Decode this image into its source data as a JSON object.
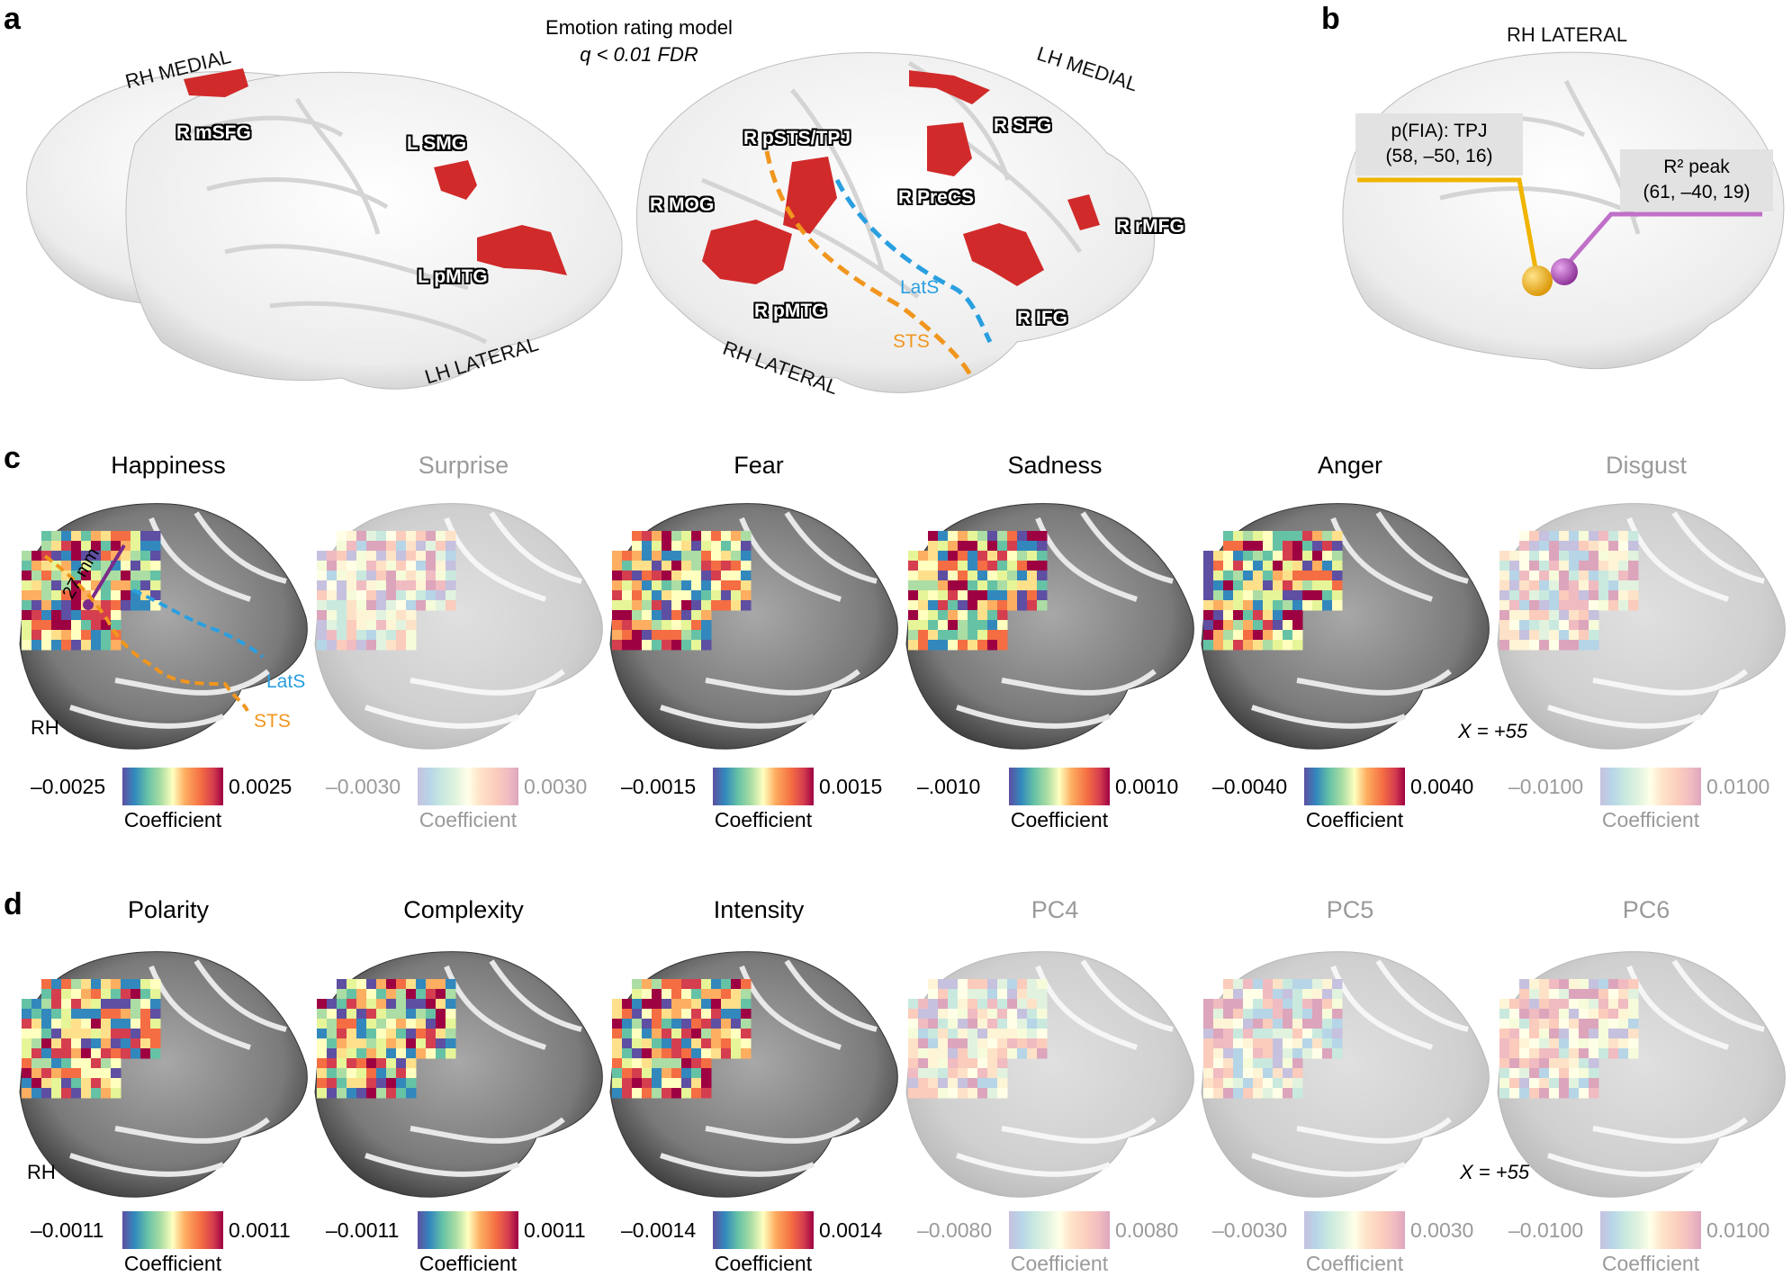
{
  "panels": {
    "a": {
      "letter": "a",
      "title_line1": "Emotion rating model",
      "title_line2": "q < 0.01 FDR",
      "views": [
        "RH MEDIAL",
        "LH LATERAL",
        "LH MEDIAL",
        "RH LATERAL"
      ],
      "regions": [
        "R mSFG",
        "L SMG",
        "L pMTG",
        "R pSTS/TPJ",
        "R SFG",
        "R MOG",
        "R PreCS",
        "R rMFG",
        "LatS",
        "R IFG",
        "R pMTG",
        "STS"
      ]
    },
    "b": {
      "letter": "b",
      "view": "RH LATERAL",
      "callout1_line1": "p(FIA): TPJ",
      "callout1_line2": "(58, –50, 16)",
      "callout2_line1": "R² peak",
      "callout2_line2": "(61, –40, 19)"
    },
    "c": {
      "letter": "c",
      "maps": [
        {
          "title": "Happiness",
          "min": "–0.0025",
          "max": "0.0025",
          "dim": false
        },
        {
          "title": "Surprise",
          "min": "–0.0030",
          "max": "0.0030",
          "dim": true
        },
        {
          "title": "Fear",
          "min": "–0.0015",
          "max": "0.0015",
          "dim": false
        },
        {
          "title": "Sadness",
          "min": "–.0010",
          "max": "0.0010",
          "dim": false
        },
        {
          "title": "Anger",
          "min": "–0.0040",
          "max": "0.0040",
          "dim": false
        },
        {
          "title": "Disgust",
          "min": "–0.0100",
          "max": "0.0100",
          "dim": true
        }
      ],
      "hemisphere": "RH",
      "slice": "X = +55",
      "ruler": "27 mm",
      "latS": "LatS",
      "sts": "STS"
    },
    "d": {
      "letter": "d",
      "maps": [
        {
          "title": "Polarity",
          "min": "–0.0011",
          "max": "0.0011",
          "dim": false
        },
        {
          "title": "Complexity",
          "min": "–0.0011",
          "max": "0.0011",
          "dim": false
        },
        {
          "title": "Intensity",
          "min": "–0.0014",
          "max": "0.0014",
          "dim": false
        },
        {
          "title": "PC4",
          "min": "–0.0080",
          "max": "0.0080",
          "dim": true
        },
        {
          "title": "PC5",
          "min": "–0.0030",
          "max": "0.0030",
          "dim": true
        },
        {
          "title": "PC6",
          "min": "–0.0100",
          "max": "0.0100",
          "dim": true
        }
      ],
      "hemisphere": "RH",
      "slice": "X = +55"
    },
    "colorbar_label": "Coefficient",
    "colors": {
      "activation": "#d12a2a",
      "latS_line": "#2a9fe0",
      "sts_line": "#f0961e",
      "tpj_marker": "#f0b400",
      "r2_marker": "#b050b8",
      "ruler": "#7a2a8a"
    }
  }
}
